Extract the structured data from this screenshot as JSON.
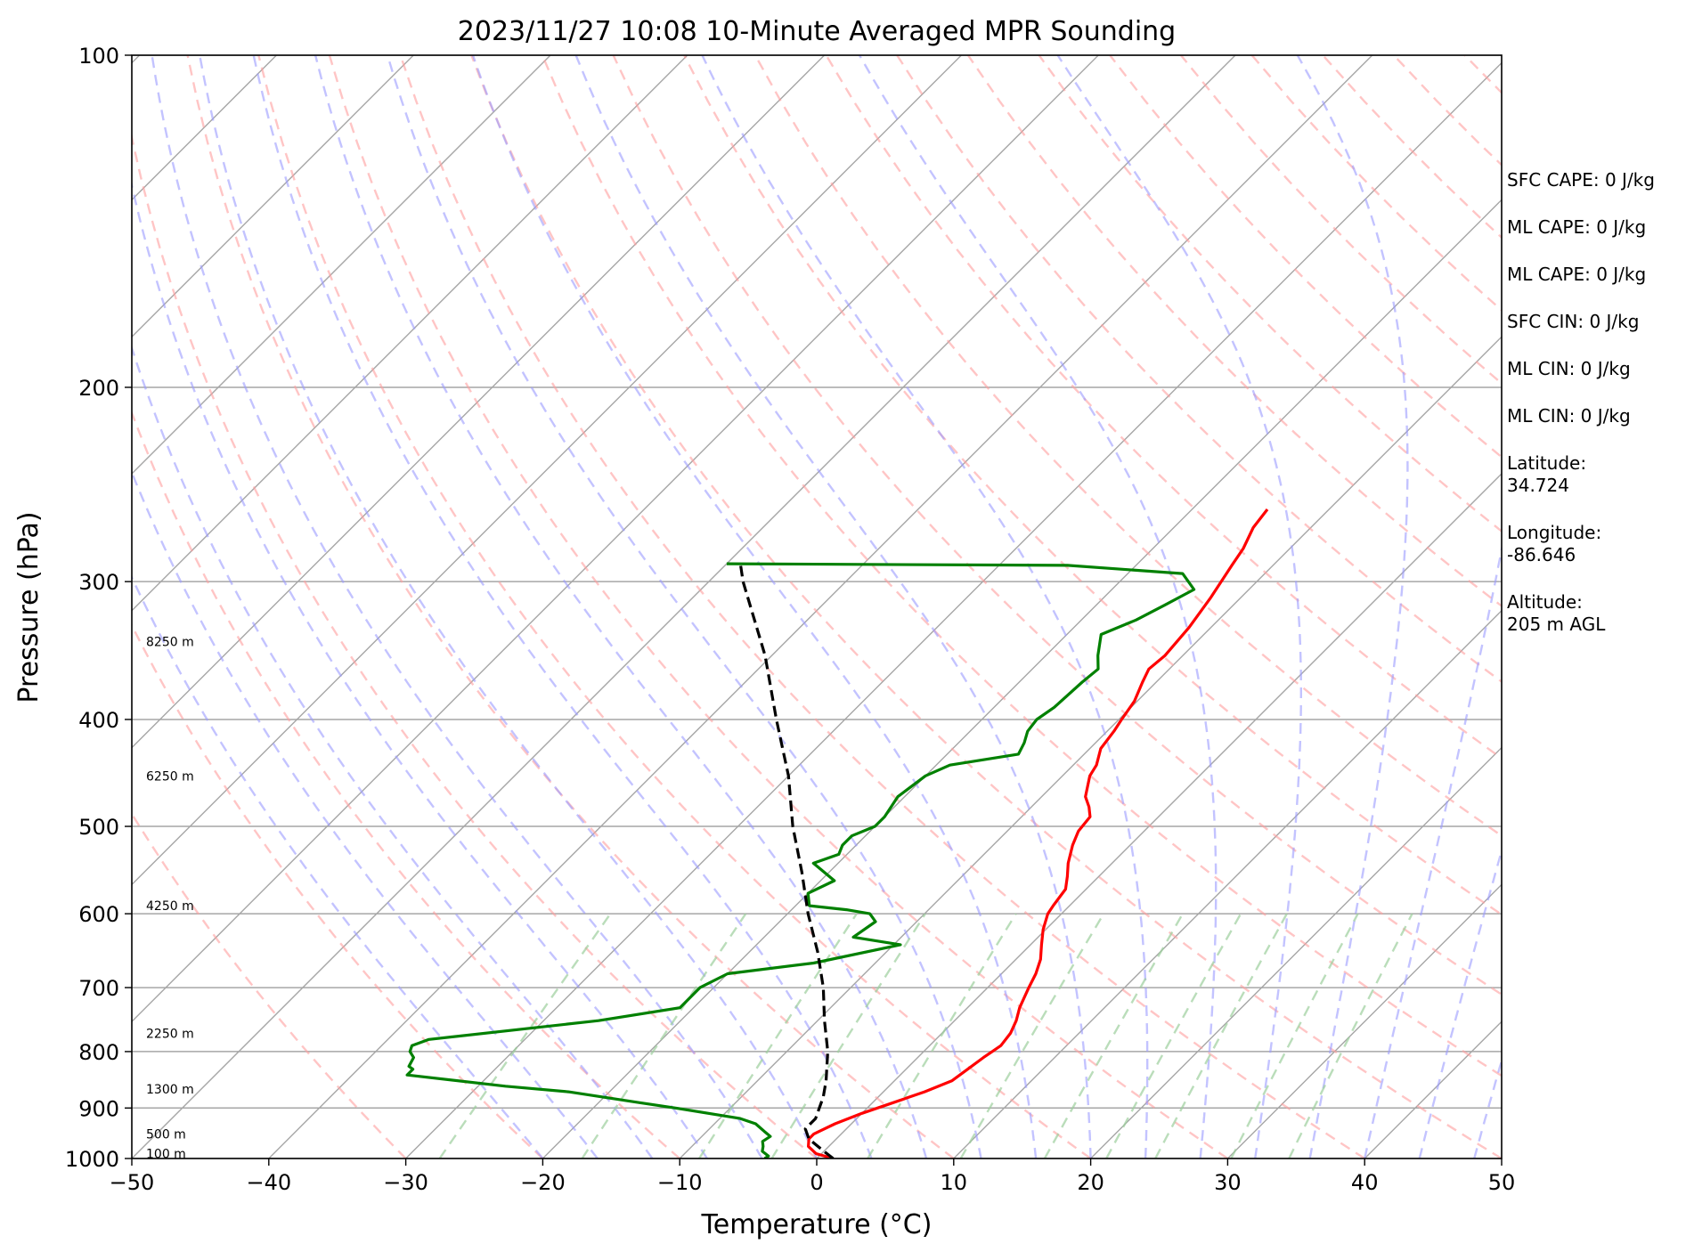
{
  "chart_data": {
    "type": "skew-t log-p",
    "title": "2023/11/27 10:08 10-Minute Averaged MPR Sounding",
    "xlabel": "Temperature (°C)",
    "ylabel": "Pressure (hPa)",
    "xlim": [
      -50,
      50
    ],
    "ylim": [
      1000,
      100
    ],
    "y_scale": "log",
    "grid": true,
    "x_ticks": [
      -50,
      -40,
      -30,
      -20,
      -10,
      0,
      10,
      20,
      30,
      40,
      50
    ],
    "x_tick_labels": [
      "−50",
      "−40",
      "−30",
      "−20",
      "−10",
      "0",
      "10",
      "20",
      "30",
      "40",
      "50"
    ],
    "y_ticks": [
      100,
      200,
      300,
      400,
      500,
      600,
      700,
      800,
      900,
      1000
    ],
    "y_tick_labels": [
      "100",
      "200",
      "300",
      "400",
      "500",
      "600",
      "700",
      "800",
      "900",
      "1000"
    ],
    "temperature_profile": {
      "color": "#ff0000",
      "points": [
        [
          1000,
          1.2
        ],
        [
          990,
          -0.4
        ],
        [
          975,
          -1.5
        ],
        [
          960,
          -2.0
        ],
        [
          950,
          -2.0
        ],
        [
          930,
          -1.2
        ],
        [
          910,
          0.0
        ],
        [
          890,
          1.5
        ],
        [
          870,
          3.0
        ],
        [
          850,
          4.2
        ],
        [
          830,
          4.5
        ],
        [
          810,
          4.8
        ],
        [
          800,
          5.0
        ],
        [
          790,
          5.2
        ],
        [
          770,
          5.0
        ],
        [
          750,
          4.5
        ],
        [
          730,
          3.8
        ],
        [
          700,
          3.0
        ],
        [
          680,
          2.5
        ],
        [
          660,
          1.8
        ],
        [
          640,
          0.8
        ],
        [
          620,
          -0.2
        ],
        [
          600,
          -1.0
        ],
        [
          590,
          -1.2
        ],
        [
          570,
          -1.5
        ],
        [
          555,
          -2.3
        ],
        [
          540,
          -3.2
        ],
        [
          520,
          -4.2
        ],
        [
          505,
          -4.8
        ],
        [
          490,
          -5.0
        ],
        [
          480,
          -5.8
        ],
        [
          470,
          -6.8
        ],
        [
          450,
          -8.0
        ],
        [
          440,
          -8.3
        ],
        [
          425,
          -9.2
        ],
        [
          410,
          -9.5
        ],
        [
          400,
          -9.8
        ],
        [
          385,
          -10.2
        ],
        [
          370,
          -11.0
        ],
        [
          360,
          -11.5
        ],
        [
          350,
          -11.3
        ],
        [
          330,
          -11.6
        ],
        [
          310,
          -12.2
        ],
        [
          290,
          -13.0
        ],
        [
          280,
          -13.4
        ],
        [
          268,
          -14.2
        ],
        [
          258,
          -14.5
        ]
      ]
    },
    "dewpoint_profile": {
      "color": "#008000",
      "points": [
        [
          1000,
          -3.8
        ],
        [
          995,
          -3.7
        ],
        [
          985,
          -4.5
        ],
        [
          975,
          -4.8
        ],
        [
          965,
          -5.2
        ],
        [
          955,
          -5.0
        ],
        [
          945,
          -5.8
        ],
        [
          930,
          -7.0
        ],
        [
          920,
          -8.5
        ],
        [
          900,
          -14.0
        ],
        [
          890,
          -17.0
        ],
        [
          870,
          -23.0
        ],
        [
          860,
          -28.0
        ],
        [
          840,
          -36.0
        ],
        [
          830,
          -36.0
        ],
        [
          825,
          -36.5
        ],
        [
          810,
          -36.8
        ],
        [
          800,
          -37.5
        ],
        [
          790,
          -37.8
        ],
        [
          780,
          -37.0
        ],
        [
          750,
          -26.0
        ],
        [
          730,
          -21.0
        ],
        [
          700,
          -21.0
        ],
        [
          680,
          -20.0
        ],
        [
          665,
          -14.5
        ],
        [
          640,
          -9.5
        ],
        [
          630,
          -13.5
        ],
        [
          610,
          -13.0
        ],
        [
          600,
          -14.0
        ],
        [
          595,
          -16.0
        ],
        [
          590,
          -19.0
        ],
        [
          575,
          -20.0
        ],
        [
          560,
          -19.0
        ],
        [
          540,
          -21.8
        ],
        [
          530,
          -20.6
        ],
        [
          520,
          -21.0
        ],
        [
          510,
          -21.0
        ],
        [
          500,
          -20.0
        ],
        [
          490,
          -20.0
        ],
        [
          470,
          -20.5
        ],
        [
          450,
          -20.0
        ],
        [
          440,
          -19.0
        ],
        [
          430,
          -14.8
        ],
        [
          420,
          -15.2
        ],
        [
          410,
          -15.8
        ],
        [
          400,
          -16.0
        ],
        [
          390,
          -15.6
        ],
        [
          370,
          -15.4
        ],
        [
          360,
          -15.2
        ],
        [
          350,
          -16.2
        ],
        [
          335,
          -17.5
        ],
        [
          325,
          -16.0
        ],
        [
          315,
          -15.0
        ],
        [
          305,
          -14.0
        ],
        [
          295,
          -16.0
        ],
        [
          290,
          -25.0
        ],
        [
          289,
          -50.0
        ]
      ]
    },
    "parcel_profile": {
      "color": "#000000",
      "points": [
        [
          1000,
          1.2
        ],
        [
          985,
          0.0
        ],
        [
          960,
          -2.0
        ],
        [
          940,
          -3.0
        ],
        [
          920,
          -3.0
        ],
        [
          900,
          -3.5
        ],
        [
          880,
          -4.0
        ],
        [
          850,
          -5.0
        ],
        [
          800,
          -7.0
        ],
        [
          750,
          -9.5
        ],
        [
          700,
          -12.0
        ],
        [
          650,
          -15.0
        ],
        [
          600,
          -18.5
        ],
        [
          550,
          -22.0
        ],
        [
          500,
          -26.0
        ],
        [
          450,
          -30.0
        ],
        [
          400,
          -35.0
        ],
        [
          350,
          -40.5
        ],
        [
          300,
          -47.5
        ],
        [
          289,
          -49.0
        ]
      ]
    },
    "height_labels": [
      {
        "text": "100 m",
        "pressure": 990
      },
      {
        "text": "500 m",
        "pressure": 950
      },
      {
        "text": "1300 m",
        "pressure": 865
      },
      {
        "text": "2250 m",
        "pressure": 770
      },
      {
        "text": "4250 m",
        "pressure": 590
      },
      {
        "text": "6250 m",
        "pressure": 450
      },
      {
        "text": "8250 m",
        "pressure": 340
      }
    ],
    "reference_lines": {
      "isotherm_color": "#a6a6a6",
      "dry_adiabat_color": "#ff9e9e",
      "moist_adiabat_color": "#9b9bff",
      "mixing_ratio_color": "#9ccf9c"
    }
  },
  "side_panel": [
    {
      "label": "SFC CAPE: 0 J/kg"
    },
    {
      "label": "ML CAPE: 0 J/kg"
    },
    {
      "label": "ML CAPE: 0 J/kg"
    },
    {
      "label": "SFC CIN: 0 J/kg"
    },
    {
      "label": "ML CIN: 0 J/kg"
    },
    {
      "label": "ML CIN: 0 J/kg"
    },
    {
      "label": "Latitude:",
      "value": "34.724"
    },
    {
      "label": "Longitude:",
      "value": "-86.646"
    },
    {
      "label": "Altitude:",
      "value": "205 m AGL"
    }
  ]
}
